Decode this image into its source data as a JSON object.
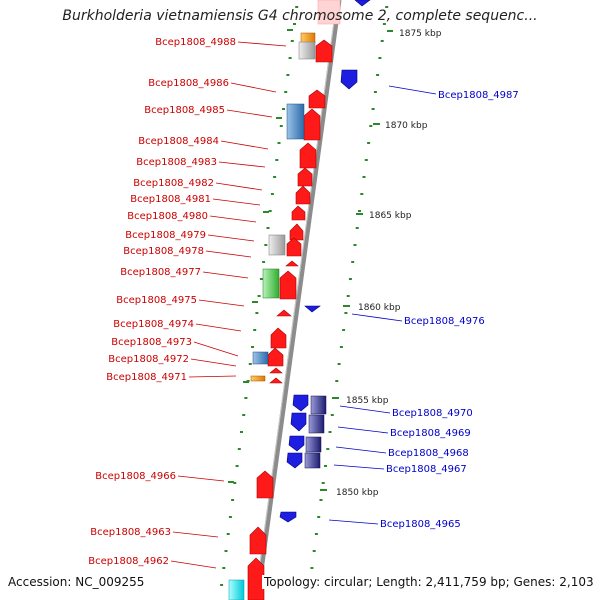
{
  "title": "Burkholderia vietnamiensis G4 chromosome 2, complete sequenc...",
  "footer": {
    "accession": "Accession: NC_009255",
    "topology": "Topology: circular; Length: 2,411,759 bp; Genes: 2,103"
  },
  "colors": {
    "backbone": "#8c8c8c",
    "left_label": "#cc0000",
    "right_label": "#0000cc",
    "tick": "#2a8a2a",
    "kbp_text": "#222222"
  },
  "kbp_ticks": [
    "1875 kbp",
    "1870 kbp",
    "1865 kbp",
    "1860 kbp",
    "1855 kbp",
    "1850 kbp"
  ],
  "left_genes": [
    "Bcep1808_4988",
    "Bcep1808_4986",
    "Bcep1808_4985",
    "Bcep1808_4984",
    "Bcep1808_4983",
    "Bcep1808_4982",
    "Bcep1808_4981",
    "Bcep1808_4980",
    "Bcep1808_4979",
    "Bcep1808_4978",
    "Bcep1808_4977",
    "Bcep1808_4975",
    "Bcep1808_4974",
    "Bcep1808_4973",
    "Bcep1808_4972",
    "Bcep1808_4971",
    "Bcep1808_4966",
    "Bcep1808_4963",
    "Bcep1808_4962"
  ],
  "right_genes": [
    "Bcep1808_4987",
    "Bcep1808_4976",
    "Bcep1808_4970",
    "Bcep1808_4969",
    "Bcep1808_4968",
    "Bcep1808_4967",
    "Bcep1808_4965"
  ]
}
